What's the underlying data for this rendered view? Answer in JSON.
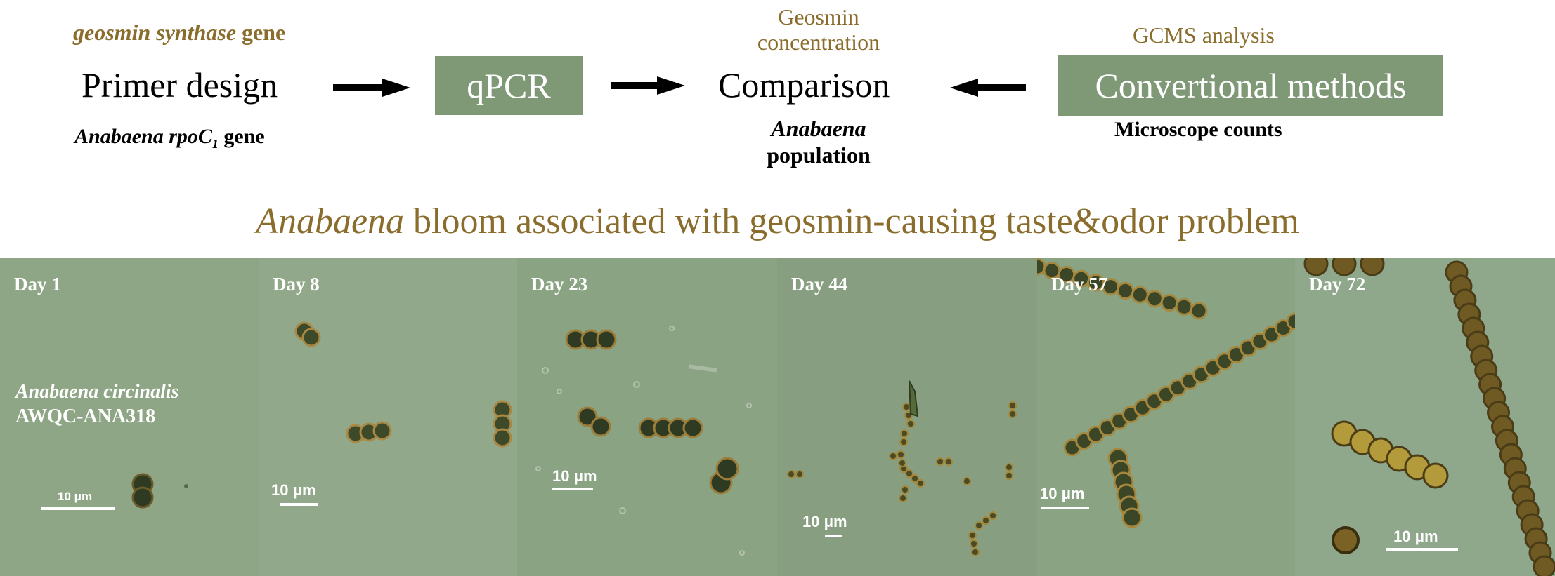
{
  "colors": {
    "gold": "#8a6d2c",
    "box": "#7f9977",
    "panel_bg": "#8da584",
    "white": "#ffffff"
  },
  "workflow": {
    "primer_top": {
      "italic": "geosmin synthase",
      "rest": " gene"
    },
    "primer_label": "Primer design",
    "primer_bottom": {
      "italic": "Anabaena rpoC",
      "sub": "1",
      "rest": " gene"
    },
    "qpcr_label": "qPCR",
    "comparison_top_line1": "Geosmin",
    "comparison_top_line2": "concentration",
    "comparison_label": "Comparison",
    "comparison_bottom_line1": "Anabaena",
    "comparison_bottom_line2": "population",
    "gcms_label": "GCMS analysis",
    "conventional_label": "Convertional methods",
    "microscope_label": "Microscope counts"
  },
  "headline": {
    "italic": "Anabaena",
    "rest": " bloom associated with geosmin-causing taste&odor problem"
  },
  "panels": [
    {
      "day": "Day 1",
      "scale": "10 μm",
      "strain_line1": "Anabaena circinalis",
      "strain_line2": "AWQC-ANA318"
    },
    {
      "day": "Day 8",
      "scale": "10 μm"
    },
    {
      "day": "Day 23",
      "scale": "10 μm"
    },
    {
      "day": "Day 44",
      "scale": "10 μm"
    },
    {
      "day": "Day 57",
      "scale": "10 μm"
    },
    {
      "day": "Day 72",
      "scale": "10 μm"
    }
  ]
}
